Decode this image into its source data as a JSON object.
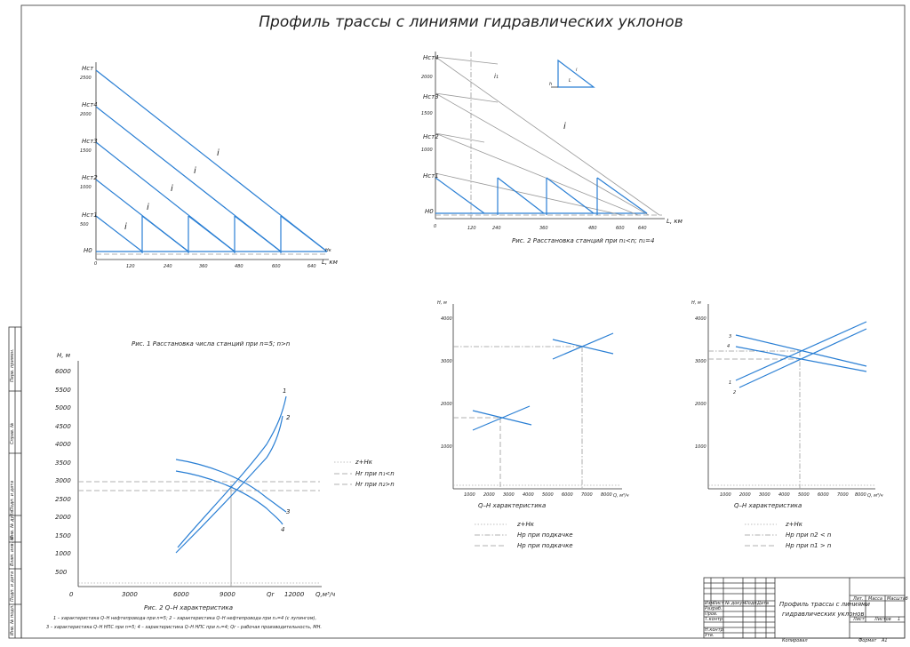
{
  "title": "Профиль трассы с линиями гидравлических уклонов",
  "chart1": {
    "y_labels_h": [
      "Hст",
      "Hст4",
      "Hст3",
      "Hст2",
      "Hст1",
      "H0"
    ],
    "y_values": [
      "2500",
      "2000",
      "1500",
      "1000",
      "500"
    ],
    "x_ticks": [
      "0",
      "120",
      "240",
      "360",
      "480",
      "600",
      "640"
    ],
    "x_unit": "L, км",
    "slope_labels": [
      "i",
      "i",
      "i",
      "i",
      "i"
    ],
    "end_label": "Hк"
  },
  "chart2": {
    "y_labels_h": [
      "Hст4",
      "Hст3",
      "Hст2",
      "Hст1",
      "H0"
    ],
    "y_values": [
      "2000",
      "1500",
      "1000",
      "500"
    ],
    "x_ticks": [
      "0",
      "120",
      "240",
      "360",
      "480",
      "600",
      "640"
    ],
    "x_unit": "L, км",
    "slope_labels": [
      "i₁",
      "i"
    ],
    "triangle_labels": [
      "i",
      "h",
      "L"
    ],
    "caption": "Рис. 2 Расстановка станций при n₁<n; n₁=4"
  },
  "chart3": {
    "caption_top": "Рис. 1 Расстановка числа станций при n=5; n>n",
    "ylabel": "H, м",
    "y_ticks": [
      "6000",
      "5500",
      "5000",
      "4500",
      "4000",
      "3500",
      "3000",
      "2500",
      "2000",
      "1500",
      "1000",
      "500"
    ],
    "x_ticks": [
      "0",
      "3000",
      "6000",
      "9000",
      "12000"
    ],
    "x_unit": "Q,м³/ч",
    "qr_label": "Qr",
    "curve_labels": [
      "1",
      "2",
      "3",
      "4"
    ],
    "legend": [
      "z+Hк",
      "Hr  при n₁<n",
      "Hr  при n₂>n"
    ],
    "caption": "Рис. 2 Q–H характеристика",
    "notes": [
      "1 – характеристика Q–H нефтепровода при n=5; 2 – характеристика Q–H нефтепровода при n₁=4 (с лупингом),",
      "3 – характеристика Q–H НПС при n=5; 4 – характеристика Q–H НПС при n₁=4; Qr – рабочая производительность, МН."
    ]
  },
  "chart4": {
    "ylabel": "H, м",
    "y_ticks": [
      "4000",
      "3000",
      "2000",
      "1000"
    ],
    "x_ticks": [
      "1000",
      "2000",
      "3000",
      "4000",
      "5000",
      "6000",
      "7000",
      "8000"
    ],
    "x_unit": "Q, м³/ч",
    "caption": "Q–H характеристика",
    "legend": [
      "z+Hк",
      "Hр при подкачке",
      "Hр при подкачке"
    ]
  },
  "chart5": {
    "ylabel": "H, м",
    "y_ticks": [
      "4000",
      "3000",
      "2000",
      "1000"
    ],
    "x_ticks": [
      "1000",
      "2000",
      "3000",
      "4000",
      "5000",
      "6000",
      "7000",
      "8000"
    ],
    "x_unit": "Q, м³/ч",
    "curve_labels": [
      "3",
      "4",
      "1",
      "2"
    ],
    "caption": "Q–H характеристика",
    "legend": [
      "z+Hк",
      "Hр при n2 < n",
      "Hр при n1 > n"
    ]
  },
  "side_stamp": [
    "Перв. примен.",
    "Справ. №",
    "Подп. и дата",
    "Инв. № дубл.",
    "Взам. инв. №",
    "Подп. и дата",
    "Инв. № подл."
  ],
  "title_block": {
    "name_line1": "Профиль трассы с линиями",
    "name_line2": "гидравлических уклонов",
    "rows": [
      "Изм.",
      "Лист",
      "№ докум.",
      "Подп.",
      "Дата",
      "Разраб.",
      "Пров.",
      "Т.контр.",
      "Н.контр.",
      "Утв."
    ],
    "col_heads": [
      "Лит.",
      "Масса",
      "Масштаб"
    ],
    "sheet": "Лист",
    "sheets": "Листов",
    "sheets_val": "1",
    "copied": "Копировал",
    "format": "Формат",
    "format_val": "A1"
  }
}
